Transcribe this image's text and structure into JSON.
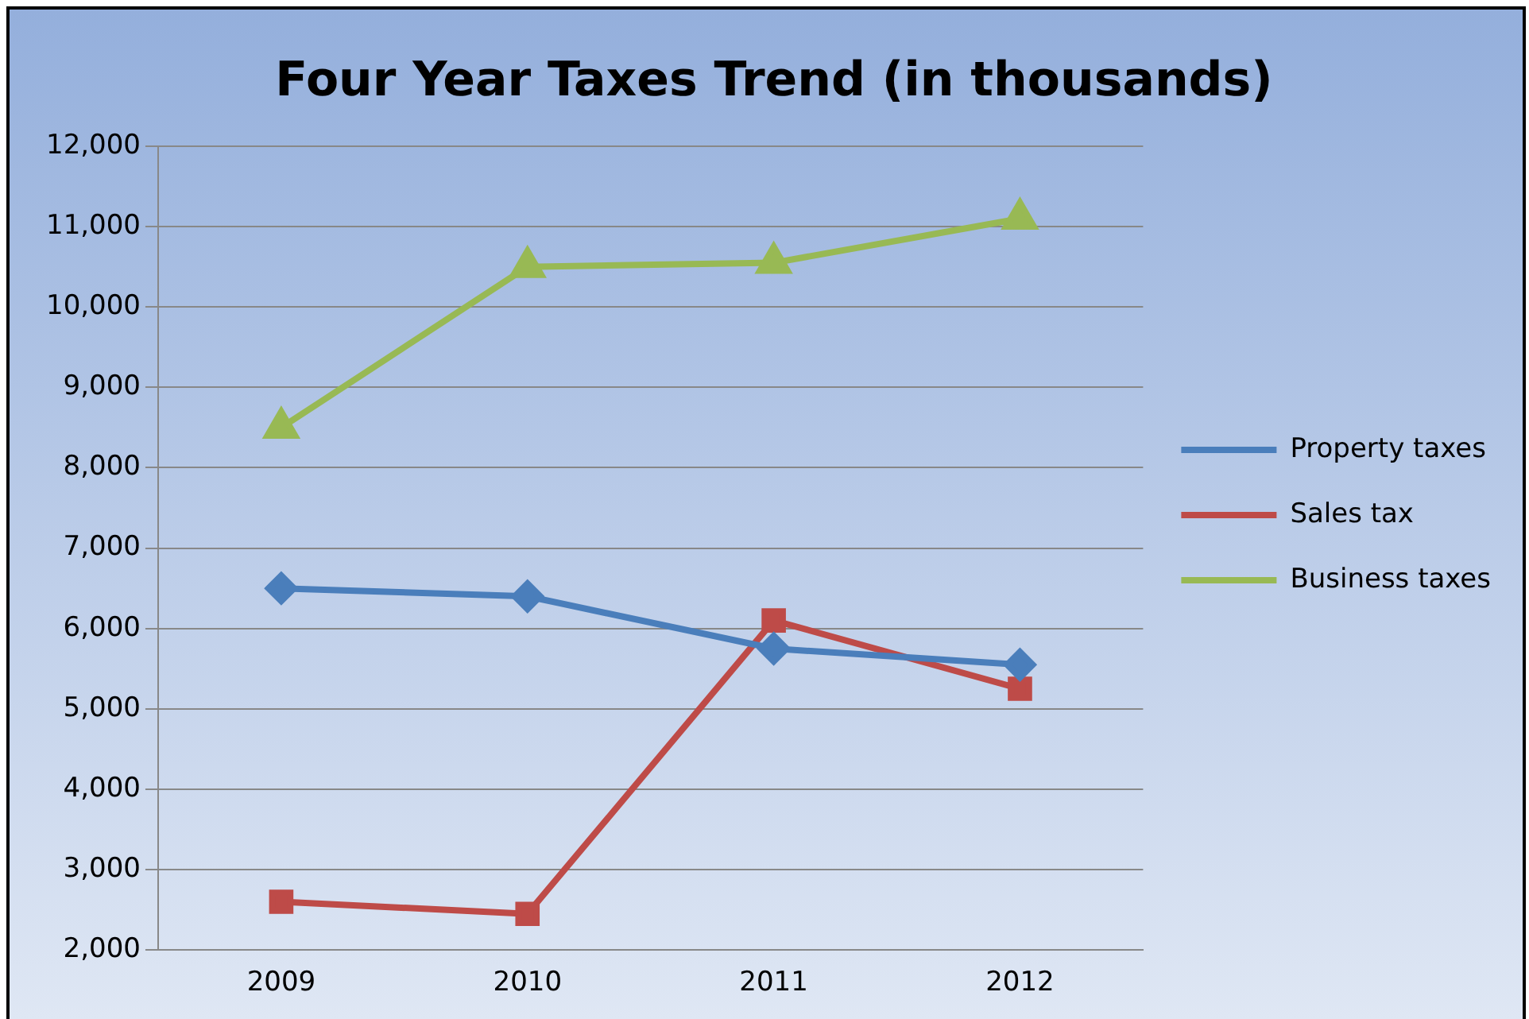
{
  "chart_data": {
    "type": "line",
    "title": "Four Year Taxes Trend (in thousands)",
    "categories": [
      "2009",
      "2010",
      "2011",
      "2012"
    ],
    "series": [
      {
        "name": "Property taxes",
        "color": "#4a7ebb",
        "marker": "diamond",
        "values": [
          6500,
          6400,
          5750,
          5550
        ]
      },
      {
        "name": "Sales tax",
        "color": "#be4b48",
        "marker": "square",
        "values": [
          2600,
          2450,
          6100,
          5250
        ]
      },
      {
        "name": "Business taxes",
        "color": "#98b954",
        "marker": "triangle",
        "values": [
          8500,
          10500,
          10550,
          11100
        ]
      }
    ],
    "ylim": [
      2000,
      12000
    ],
    "yticks": [
      {
        "value": 2000,
        "label": "2,000"
      },
      {
        "value": 3000,
        "label": "3,000"
      },
      {
        "value": 4000,
        "label": "4,000"
      },
      {
        "value": 5000,
        "label": "5,000"
      },
      {
        "value": 6000,
        "label": "6,000"
      },
      {
        "value": 7000,
        "label": "7,000"
      },
      {
        "value": 8000,
        "label": "8,000"
      },
      {
        "value": 9000,
        "label": "9,000"
      },
      {
        "value": 10000,
        "label": "10,000"
      },
      {
        "value": 11000,
        "label": "11,000"
      },
      {
        "value": 12000,
        "label": "12,000"
      }
    ],
    "grid": "y",
    "legend": "right"
  }
}
